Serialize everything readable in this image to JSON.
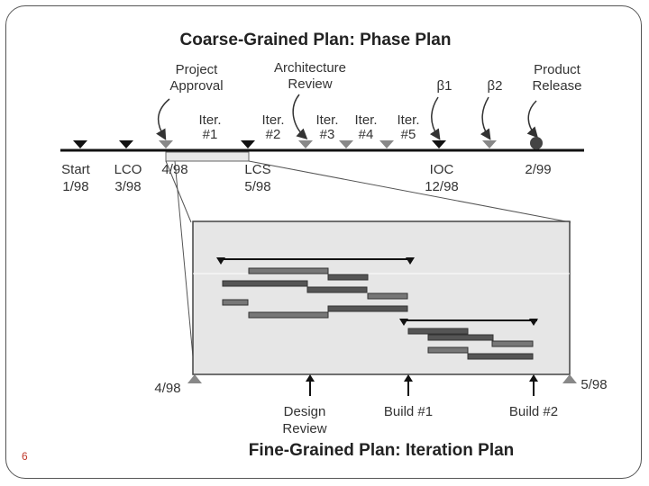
{
  "slide": {
    "page_number": "6"
  },
  "phase_plan": {
    "title": "Coarse-Grained Plan: Phase Plan",
    "callouts": [
      {
        "line1": "Project",
        "line2": "Approval"
      },
      {
        "line1": "Architecture",
        "line2": "Review"
      },
      {
        "line1": "β1",
        "line2": ""
      },
      {
        "line1": "β2",
        "line2": ""
      },
      {
        "line1": "Product",
        "line2": "Release"
      }
    ],
    "iterations": [
      {
        "line1": "Iter.",
        "line2": "#1"
      },
      {
        "line1": "Iter.",
        "line2": "#2"
      },
      {
        "line1": "Iter.",
        "line2": "#3"
      },
      {
        "line1": "Iter.",
        "line2": "#4"
      },
      {
        "line1": "Iter.",
        "line2": "#5"
      }
    ],
    "milestones": [
      {
        "line1": "Start",
        "line2": "1/98"
      },
      {
        "line1": "LCO",
        "line2": "3/98"
      },
      {
        "line1": "4/98",
        "line2": ""
      },
      {
        "line1": "LCS",
        "line2": "5/98"
      },
      {
        "line1": "IOC",
        "line2": "12/98"
      },
      {
        "line1": "2/99",
        "line2": ""
      }
    ]
  },
  "iteration_plan": {
    "title": "Fine-Grained Plan: Iteration Plan",
    "start_label": "4/98",
    "end_label": "5/98",
    "events": [
      {
        "line1": "Design",
        "line2": "Review"
      },
      {
        "line1": "Build #1",
        "line2": ""
      },
      {
        "line1": "Build #2",
        "line2": ""
      }
    ]
  },
  "colors": {
    "bar": "#555555",
    "bar_light": "#888888",
    "panel": "#e6e6e6",
    "line": "#111111"
  }
}
